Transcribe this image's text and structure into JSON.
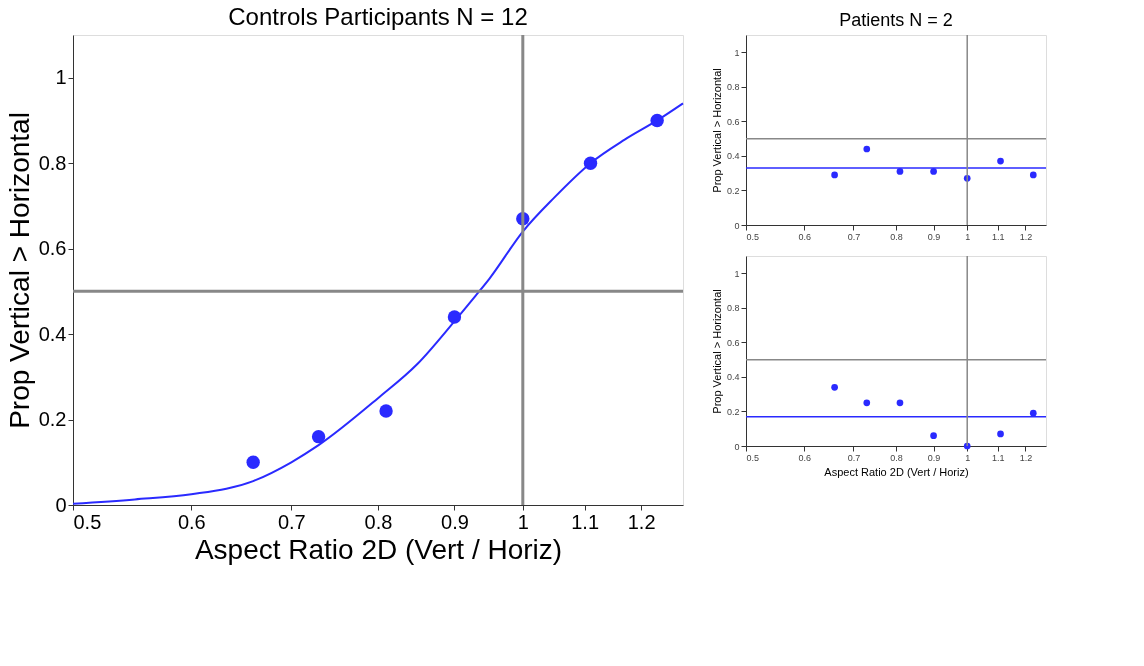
{
  "chart_data": [
    {
      "type": "scatter",
      "title": "Controls Participants N = 12",
      "xlabel": "Aspect Ratio 2D (Vert / Horiz)",
      "ylabel": "Prop Vertical > Horizontal",
      "log": "x",
      "marker": "circle",
      "grid": false,
      "xlim": [
        0.5,
        1.28
      ],
      "xticks": [
        0.5,
        0.6,
        0.7,
        0.8,
        0.9,
        1,
        1.1,
        1.2
      ],
      "ylim": [
        0,
        1.1
      ],
      "yticks": [
        0,
        0.2,
        0.4,
        0.6,
        0.8,
        1
      ],
      "series": [
        {
          "color": "#2a2aff",
          "x": [
            0.66,
            0.73,
            0.81,
            0.9,
            1,
            1.11,
            1.23
          ],
          "values": [
            0.1,
            0.16,
            0.22,
            0.44,
            0.67,
            0.8,
            0.9
          ]
        },
        {
          "type": "line",
          "marker": "none",
          "color": "#2a2aff",
          "x": [
            0.5,
            0.55,
            0.6,
            0.66,
            0.7,
            0.73,
            0.8,
            0.85,
            0.9,
            0.93,
            0.95,
            1,
            1.05,
            1.11,
            1.17,
            1.23,
            1.28
          ],
          "values": [
            0.003,
            0.013,
            0.025,
            0.056,
            0.1,
            0.14,
            0.25,
            0.33,
            0.43,
            0.49,
            0.53,
            0.64,
            0.72,
            0.8,
            0.855,
            0.9,
            0.94
          ]
        }
      ],
      "ref_lines": [
        {
          "axis": "y",
          "value": 0.5,
          "color": "#888888"
        },
        {
          "axis": "x",
          "value": 1,
          "color": "#888888"
        }
      ]
    },
    {
      "type": "scatter",
      "title": "Patients N = 2",
      "ylabel": "Prop Vertical > Horizontal",
      "log": "x",
      "marker": "circle",
      "grid": false,
      "xlim": [
        0.5,
        1.28
      ],
      "xticks": [
        0.5,
        0.6,
        0.7,
        0.8,
        0.9,
        1,
        1.1,
        1.2
      ],
      "ylim": [
        0,
        1.1
      ],
      "yticks": [
        0,
        0.2,
        0.4,
        0.6,
        0.8,
        1
      ],
      "series": [
        {
          "color": "#2a2aff",
          "x": [
            0.66,
            0.73,
            0.81,
            0.9,
            1,
            1.11,
            1.23
          ],
          "values": [
            0.29,
            0.44,
            0.31,
            0.31,
            0.27,
            0.37,
            0.29
          ]
        },
        {
          "type": "line",
          "marker": "none",
          "color": "#2a2aff",
          "x": [
            0.5,
            1.28
          ],
          "values": [
            0.33,
            0.33
          ]
        }
      ],
      "ref_lines": [
        {
          "axis": "y",
          "value": 0.5,
          "color": "#888888"
        },
        {
          "axis": "x",
          "value": 1,
          "color": "#888888"
        }
      ]
    },
    {
      "type": "scatter",
      "xlabel": "Aspect Ratio 2D (Vert / Horiz)",
      "ylabel": "Prop Vertical > Horizontal",
      "log": "x",
      "marker": "circle",
      "grid": false,
      "xlim": [
        0.5,
        1.28
      ],
      "xticks": [
        0.5,
        0.6,
        0.7,
        0.8,
        0.9,
        1,
        1.1,
        1.2
      ],
      "ylim": [
        0,
        1.1
      ],
      "yticks": [
        0,
        0.2,
        0.4,
        0.6,
        0.8,
        1
      ],
      "series": [
        {
          "color": "#2a2aff",
          "x": [
            0.66,
            0.73,
            0.81,
            0.9,
            1,
            1.11,
            1.23
          ],
          "values": [
            0.34,
            0.25,
            0.25,
            0.06,
            0,
            0.07,
            0.19
          ]
        },
        {
          "type": "line",
          "marker": "none",
          "color": "#2a2aff",
          "x": [
            0.5,
            1.28
          ],
          "values": [
            0.17,
            0.17
          ]
        }
      ],
      "ref_lines": [
        {
          "axis": "y",
          "value": 0.5,
          "color": "#888888"
        },
        {
          "axis": "x",
          "value": 1,
          "color": "#888888"
        }
      ]
    }
  ]
}
